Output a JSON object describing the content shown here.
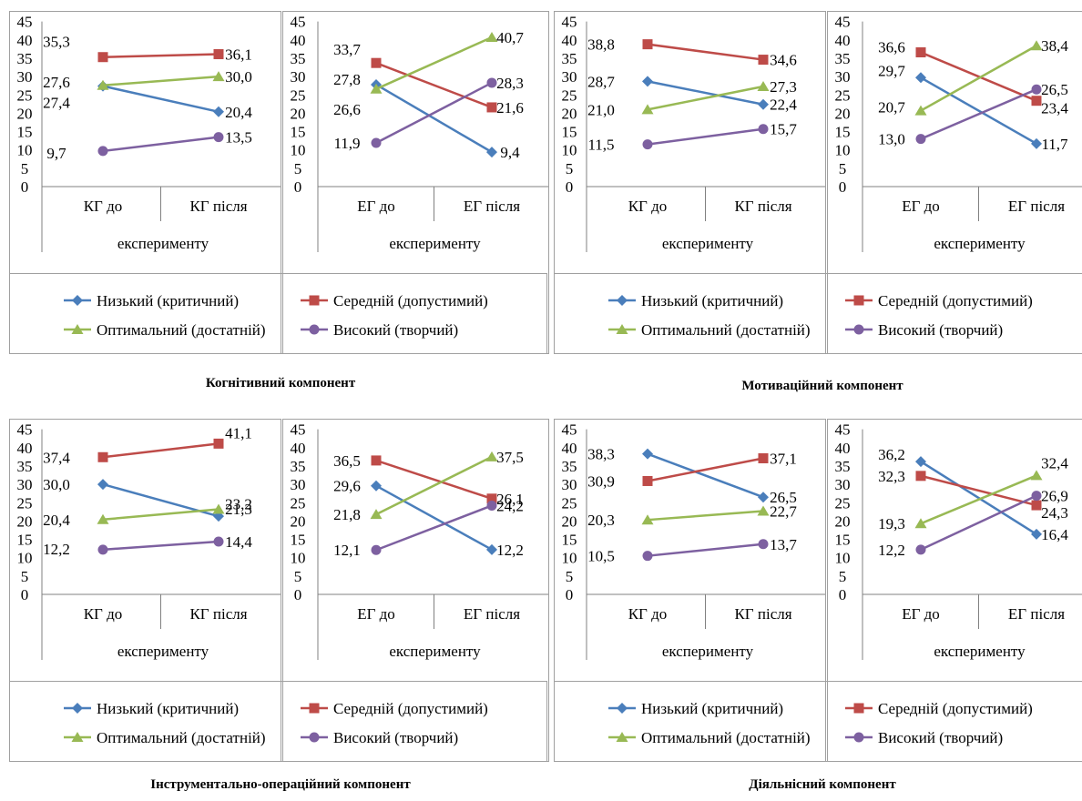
{
  "colors": {
    "series": [
      "#4a7ebb",
      "#be4b48",
      "#98b954",
      "#7d60a0"
    ],
    "frame": "#a0a0a0",
    "axis": "#808080",
    "text": "#000000"
  },
  "legend": [
    "Низький (критичний)",
    "Середній (допустимий)",
    "Оптимальний (достатній)",
    "Високий (творчий)"
  ],
  "common": {
    "y_ticks": [
      "45",
      "40",
      "35",
      "30",
      "25",
      "20",
      "15",
      "10",
      "5",
      "0"
    ],
    "group_label": "експерименту"
  },
  "components": [
    {
      "title": "Когнітивний компонент",
      "charts": [
        {
          "type": "line",
          "categories": [
            "КГ до",
            "КГ після"
          ],
          "ylim": [
            0,
            45
          ],
          "series": [
            {
              "values": [
                27.4,
                20.4
              ],
              "labels": [
                "27,4",
                "20,4"
              ]
            },
            {
              "values": [
                35.3,
                36.1
              ],
              "labels": [
                "35,3",
                "36,1"
              ]
            },
            {
              "values": [
                27.6,
                30.0
              ],
              "labels": [
                "27,6",
                "30,0"
              ]
            },
            {
              "values": [
                9.7,
                13.5
              ],
              "labels": [
                "9,7",
                "13,5"
              ]
            }
          ]
        },
        {
          "type": "line",
          "categories": [
            "ЕГ до",
            "ЕГ після"
          ],
          "ylim": [
            0,
            45
          ],
          "series": [
            {
              "values": [
                27.8,
                9.4
              ],
              "labels": [
                "27,8",
                "9,4"
              ]
            },
            {
              "values": [
                33.7,
                21.6
              ],
              "labels": [
                "33,7",
                "21,6"
              ]
            },
            {
              "values": [
                26.6,
                40.7
              ],
              "labels": [
                "26,6",
                "40,7"
              ]
            },
            {
              "values": [
                11.9,
                28.3
              ],
              "labels": [
                "11,9",
                "28,3"
              ]
            }
          ]
        }
      ]
    },
    {
      "title": "Мотиваційний компонент",
      "charts": [
        {
          "type": "line",
          "categories": [
            "КГ до",
            "КГ після"
          ],
          "ylim": [
            0,
            45
          ],
          "series": [
            {
              "values": [
                28.7,
                22.4
              ],
              "labels": [
                "28,7",
                "22,4"
              ]
            },
            {
              "values": [
                38.8,
                34.6
              ],
              "labels": [
                "38,8",
                "34,6"
              ]
            },
            {
              "values": [
                21.0,
                27.3
              ],
              "labels": [
                "21,0",
                "27,3"
              ]
            },
            {
              "values": [
                11.5,
                15.7
              ],
              "labels": [
                "11,5",
                "15,7"
              ]
            }
          ]
        },
        {
          "type": "line",
          "categories": [
            "ЕГ до",
            "ЕГ після"
          ],
          "ylim": [
            0,
            45
          ],
          "series": [
            {
              "values": [
                29.7,
                11.7
              ],
              "labels": [
                "29,7",
                "11,7"
              ]
            },
            {
              "values": [
                36.6,
                23.4
              ],
              "labels": [
                "36,6",
                "23,4"
              ]
            },
            {
              "values": [
                20.7,
                38.4
              ],
              "labels": [
                "20,7",
                "38,4"
              ]
            },
            {
              "values": [
                13.0,
                26.5
              ],
              "labels": [
                "13,0",
                "26,5"
              ]
            }
          ]
        }
      ]
    },
    {
      "title": "Інструментально-операційний компонент",
      "charts": [
        {
          "type": "line",
          "categories": [
            "КГ до",
            "КГ після"
          ],
          "ylim": [
            0,
            45
          ],
          "series": [
            {
              "values": [
                30.0,
                21.3
              ],
              "labels": [
                "30,0",
                "21,3"
              ]
            },
            {
              "values": [
                37.4,
                41.1
              ],
              "labels": [
                "37,4",
                "41,1"
              ]
            },
            {
              "values": [
                20.4,
                23.2
              ],
              "labels": [
                "20,4",
                "23,2"
              ]
            },
            {
              "values": [
                12.2,
                14.4
              ],
              "labels": [
                "12,2",
                "14,4"
              ]
            }
          ]
        },
        {
          "type": "line",
          "categories": [
            "ЕГ до",
            "ЕГ після"
          ],
          "ylim": [
            0,
            45
          ],
          "series": [
            {
              "values": [
                29.6,
                12.2
              ],
              "labels": [
                "29,6",
                "12,2"
              ]
            },
            {
              "values": [
                36.5,
                26.1
              ],
              "labels": [
                "36,5",
                "26,1"
              ]
            },
            {
              "values": [
                21.8,
                37.5
              ],
              "labels": [
                "21,8",
                "37,5"
              ]
            },
            {
              "values": [
                12.1,
                24.2
              ],
              "labels": [
                "12,1",
                "24,2"
              ]
            }
          ]
        }
      ]
    },
    {
      "title": "Діяльнісний компонент",
      "charts": [
        {
          "type": "line",
          "categories": [
            "КГ до",
            "КГ після"
          ],
          "ylim": [
            0,
            45
          ],
          "series": [
            {
              "values": [
                38.3,
                26.5
              ],
              "labels": [
                "38,3",
                "26,5"
              ]
            },
            {
              "values": [
                30.9,
                37.1
              ],
              "labels": [
                "30,9",
                "37,1"
              ]
            },
            {
              "values": [
                20.3,
                22.7
              ],
              "labels": [
                "20,3",
                "22,7"
              ]
            },
            {
              "values": [
                10.5,
                13.7
              ],
              "labels": [
                "10,5",
                "13,7"
              ]
            }
          ]
        },
        {
          "type": "line",
          "categories": [
            "ЕГ до",
            "ЕГ після"
          ],
          "ylim": [
            0,
            45
          ],
          "series": [
            {
              "values": [
                36.2,
                16.4
              ],
              "labels": [
                "36,2",
                "16,4"
              ]
            },
            {
              "values": [
                32.3,
                24.3
              ],
              "labels": [
                "32,3",
                "24,3"
              ]
            },
            {
              "values": [
                19.3,
                32.4
              ],
              "labels": [
                "19,3",
                "32,4"
              ]
            },
            {
              "values": [
                12.2,
                26.9
              ],
              "labels": [
                "12,2",
                "26,9"
              ]
            }
          ]
        }
      ]
    }
  ]
}
